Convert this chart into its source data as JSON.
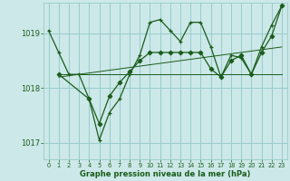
{
  "background_color": "#cce8e8",
  "grid_color": "#99cccc",
  "line_color": "#1a5c1a",
  "marker_color": "#1a5c1a",
  "xlabel": "Graphe pression niveau de la mer (hPa)",
  "xlim": [
    -0.5,
    23.5
  ],
  "ylim": [
    1016.7,
    1019.55
  ],
  "yticks": [
    1017,
    1018,
    1019
  ],
  "xticks": [
    0,
    1,
    2,
    3,
    4,
    5,
    6,
    7,
    8,
    9,
    10,
    11,
    12,
    13,
    14,
    15,
    16,
    17,
    18,
    19,
    20,
    21,
    22,
    23
  ],
  "series": [
    {
      "x": [
        0,
        1,
        2,
        3,
        4,
        5,
        6,
        7,
        8,
        9,
        10,
        11,
        12,
        13,
        14,
        15,
        16,
        17,
        18,
        19,
        20,
        21,
        22,
        23
      ],
      "y": [
        1019.05,
        1018.65,
        1018.25,
        1018.25,
        1017.8,
        1017.05,
        1017.55,
        1017.8,
        1018.25,
        1018.6,
        1019.2,
        1019.25,
        1019.05,
        1018.85,
        1019.2,
        1019.2,
        1018.75,
        1018.2,
        1018.6,
        1018.55,
        1018.25,
        1018.75,
        1019.15,
        1019.5
      ],
      "marker": "+"
    },
    {
      "x": [
        1,
        23
      ],
      "y": [
        1018.25,
        1018.25
      ],
      "marker": null
    },
    {
      "x": [
        1,
        23
      ],
      "y": [
        1018.2,
        1018.75
      ],
      "marker": null
    },
    {
      "x": [
        1,
        4,
        5,
        6,
        7,
        8,
        9,
        10,
        11,
        12,
        13,
        14,
        15,
        16,
        17,
        18,
        19,
        20,
        21,
        22,
        23
      ],
      "y": [
        1018.25,
        1017.8,
        1017.35,
        1017.85,
        1018.1,
        1018.3,
        1018.5,
        1018.65,
        1018.65,
        1018.65,
        1018.65,
        1018.65,
        1018.65,
        1018.35,
        1018.2,
        1018.5,
        1018.6,
        1018.25,
        1018.65,
        1018.95,
        1019.5
      ],
      "marker": "D"
    }
  ]
}
